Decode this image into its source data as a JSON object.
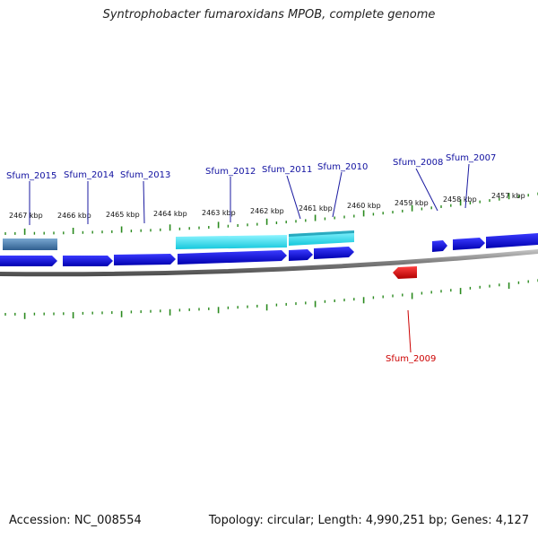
{
  "title": "Syntrophobacter fumaroxidans MPOB, complete genome",
  "footer": {
    "accession": "Accession: NC_008554",
    "summary": "Topology: circular; Length: 4,990,251 bp; Genes: 4,127"
  },
  "colors": {
    "forward_cds": "#1414e6",
    "reverse_cds": "#e60000",
    "highlight_cds": "#19d6e6",
    "highlight_rna": "#4a86b8",
    "backbone": "#8a8a8a",
    "ticks": "#2a8a1e",
    "label_forward": "#1010a0",
    "label_reverse": "#cc0000"
  },
  "kbp_labels": [
    "2467 kbp",
    "2466 kbp",
    "2465 kbp",
    "2464 kbp",
    "2463 kbp",
    "2462 kbp",
    "2461 kbp",
    "2460 kbp",
    "2459 kbp",
    "2458 kbp",
    "2457 kbp"
  ],
  "genes_forward": [
    "Sfum_2015",
    "Sfum_2014",
    "Sfum_2013",
    "Sfum_2012",
    "Sfum_2011",
    "Sfum_2010",
    "Sfum_2008",
    "Sfum_2007"
  ],
  "genes_reverse": [
    "Sfum_2009"
  ]
}
